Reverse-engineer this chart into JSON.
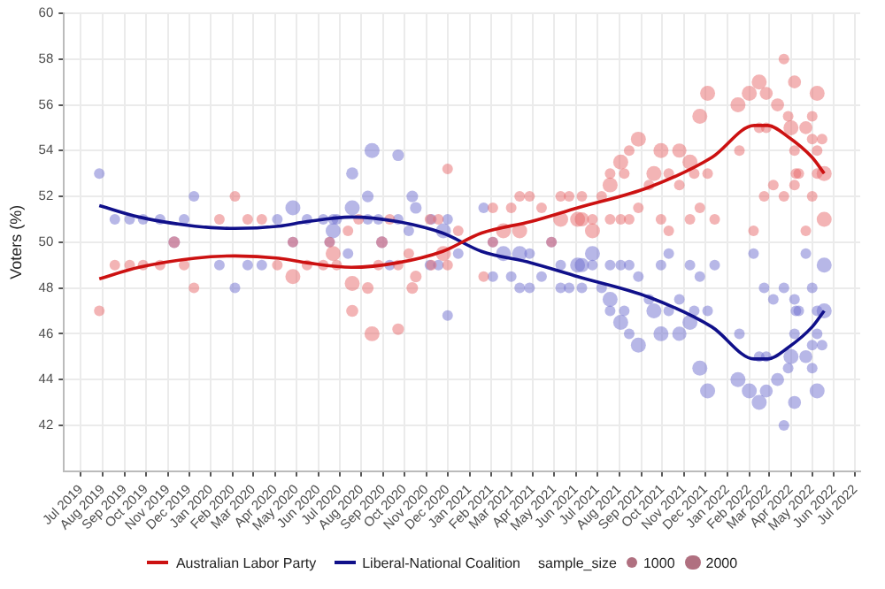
{
  "chart_data": {
    "type": "bubble",
    "ylabel": "Voters (%)",
    "legend": "bottom",
    "legend_title": "sample_size",
    "size_legend": [
      1000,
      2000
    ],
    "grid": true,
    "xlim": [
      "2019-06-07",
      "2022-07-08"
    ],
    "ylim": [
      40,
      60
    ],
    "yticks": [
      42,
      44,
      46,
      48,
      50,
      52,
      54,
      56,
      58,
      60
    ],
    "xticks": [
      {
        "value": "2019-07",
        "label": "Jul 2019"
      },
      {
        "value": "2019-08",
        "label": "Aug 2019"
      },
      {
        "value": "2019-09",
        "label": "Sep 2019"
      },
      {
        "value": "2019-10",
        "label": "Oct 2019"
      },
      {
        "value": "2019-11",
        "label": "Nov 2019"
      },
      {
        "value": "2019-12",
        "label": "Dec 2019"
      },
      {
        "value": "2020-01",
        "label": "Jan 2020"
      },
      {
        "value": "2020-02",
        "label": "Feb 2020"
      },
      {
        "value": "2020-03",
        "label": "Mar 2020"
      },
      {
        "value": "2020-04",
        "label": "Apr 2020"
      },
      {
        "value": "2020-05",
        "label": "May 2020"
      },
      {
        "value": "2020-06",
        "label": "Jun 2020"
      },
      {
        "value": "2020-07",
        "label": "Jul 2020"
      },
      {
        "value": "2020-08",
        "label": "Aug 2020"
      },
      {
        "value": "2020-09",
        "label": "Sep 2020"
      },
      {
        "value": "2020-10",
        "label": "Oct 2020"
      },
      {
        "value": "2020-11",
        "label": "Nov 2020"
      },
      {
        "value": "2020-12",
        "label": "Dec 2020"
      },
      {
        "value": "2021-01",
        "label": "Jan 2021"
      },
      {
        "value": "2021-02",
        "label": "Feb 2021"
      },
      {
        "value": "2021-03",
        "label": "Mar 2021"
      },
      {
        "value": "2021-04",
        "label": "Apr 2021"
      },
      {
        "value": "2021-05",
        "label": "May 2021"
      },
      {
        "value": "2021-06",
        "label": "Jun 2021"
      },
      {
        "value": "2021-07",
        "label": "Jul 2021"
      },
      {
        "value": "2021-08",
        "label": "Aug 2021"
      },
      {
        "value": "2021-09",
        "label": "Sep 2021"
      },
      {
        "value": "2021-10",
        "label": "Oct 2021"
      },
      {
        "value": "2021-11",
        "label": "Nov 2021"
      },
      {
        "value": "2021-12",
        "label": "Dec 2021"
      },
      {
        "value": "2022-01",
        "label": "Jan 2022"
      },
      {
        "value": "2022-02",
        "label": "Feb 2022"
      },
      {
        "value": "2022-03",
        "label": "Mar 2022"
      },
      {
        "value": "2022-04",
        "label": "Apr 2022"
      },
      {
        "value": "2022-05",
        "label": "May 2022"
      },
      {
        "value": "2022-06",
        "label": "Jun 2022"
      },
      {
        "value": "2022-07",
        "label": "Jul 2022"
      }
    ],
    "series": [
      {
        "type": "bubble",
        "color": "#e8696b",
        "x": [
          "2019-07-27",
          "2019-08-18",
          "2019-09-08",
          "2019-09-27",
          "2019-10-21",
          "2019-11-10",
          "2019-11-24",
          "2019-12-08",
          "2020-01-13",
          "2020-02-04",
          "2020-02-22",
          "2020-03-13",
          "2020-04-04",
          "2020-04-26",
          "2020-04-26",
          "2020-05-16",
          "2020-06-08",
          "2020-06-17",
          "2020-06-22",
          "2020-06-27",
          "2020-07-13",
          "2020-07-19",
          "2020-07-19",
          "2020-07-28",
          "2020-08-10",
          "2020-08-16",
          "2020-08-25",
          "2020-08-30",
          "2020-09-10",
          "2020-09-22",
          "2020-09-22",
          "2020-10-07",
          "2020-10-12",
          "2020-10-17",
          "2020-11-06",
          "2020-11-08",
          "2020-11-18",
          "2020-11-25",
          "2020-12-01",
          "2020-12-01",
          "2020-12-16",
          "2021-01-21",
          "2021-02-03",
          "2021-02-03",
          "2021-02-18",
          "2021-03-01",
          "2021-03-13",
          "2021-03-13",
          "2021-03-27",
          "2021-04-13",
          "2021-04-27",
          "2021-05-10",
          "2021-05-10",
          "2021-05-22",
          "2021-06-03",
          "2021-06-09",
          "2021-06-09",
          "2021-06-24",
          "2021-06-24",
          "2021-07-07",
          "2021-07-19",
          "2021-07-19",
          "2021-07-19",
          "2021-08-03",
          "2021-08-03",
          "2021-08-08",
          "2021-08-15",
          "2021-08-15",
          "2021-08-28",
          "2021-08-28",
          "2021-09-12",
          "2021-09-19",
          "2021-09-29",
          "2021-09-29",
          "2021-10-10",
          "2021-10-10",
          "2021-10-25",
          "2021-10-25",
          "2021-11-09",
          "2021-11-09",
          "2021-11-15",
          "2021-11-23",
          "2021-11-23",
          "2021-12-04",
          "2021-12-04",
          "2021-12-14",
          "2022-01-16",
          "2022-01-18",
          "2022-02-01",
          "2022-02-07",
          "2022-02-15",
          "2022-02-15",
          "2022-02-22",
          "2022-02-25",
          "2022-02-25",
          "2022-03-07",
          "2022-03-13",
          "2022-03-22",
          "2022-03-22",
          "2022-03-28",
          "2022-04-01",
          "2022-04-06",
          "2022-04-06",
          "2022-04-06",
          "2022-04-08",
          "2022-04-12",
          "2022-04-22",
          "2022-04-22",
          "2022-05-01",
          "2022-05-01",
          "2022-05-01",
          "2022-05-08",
          "2022-05-08",
          "2022-05-08",
          "2022-05-15",
          "2022-05-18",
          "2022-05-18"
        ],
        "values": [
          47,
          49,
          49,
          49,
          49,
          50,
          49,
          48,
          51,
          52,
          51,
          51,
          49,
          48.5,
          50,
          49,
          49,
          50,
          49.5,
          49,
          50.5,
          48.2,
          47,
          51,
          48,
          46,
          49,
          50,
          51,
          46.2,
          49,
          49.5,
          48,
          48.5,
          51,
          49,
          51,
          49.5,
          49,
          53.2,
          50.5,
          48.5,
          51.5,
          50,
          50.5,
          51.5,
          52,
          50.5,
          52,
          51.5,
          50,
          52,
          51,
          52,
          51,
          52,
          51,
          50.5,
          51,
          52,
          53,
          52.5,
          51,
          53.5,
          51,
          53,
          54,
          51,
          54.5,
          51.5,
          52.5,
          53,
          54,
          51,
          53,
          50.5,
          54,
          52.5,
          53.5,
          51,
          53,
          55.5,
          51.5,
          56.5,
          53,
          51,
          56,
          54,
          56.5,
          50.5,
          57,
          55,
          52,
          56.5,
          55,
          52.5,
          56,
          58,
          52,
          55.5,
          55,
          54,
          52.5,
          57,
          53,
          53,
          55,
          50.5,
          55.5,
          54.5,
          52,
          56.5,
          54,
          53,
          54.5,
          53,
          51
        ],
        "sizes": [
          1000,
          1000,
          1000,
          1000,
          1000,
          1200,
          1000,
          1000,
          1000,
          1000,
          1000,
          1000,
          1000,
          2000,
          1000,
          1000,
          1000,
          1000,
          2000,
          1000,
          1000,
          2000,
          1300,
          1000,
          1200,
          2000,
          1000,
          1200,
          1000,
          1200,
          1000,
          1000,
          1200,
          1200,
          1000,
          1000,
          1000,
          2000,
          1000,
          1000,
          1000,
          1000,
          1000,
          1000,
          2000,
          1000,
          1000,
          2000,
          1000,
          1000,
          1000,
          1000,
          2000,
          1000,
          2000,
          1000,
          1800,
          2000,
          1000,
          1000,
          1000,
          2000,
          1000,
          2000,
          1000,
          1000,
          1000,
          1000,
          2000,
          1000,
          1000,
          2000,
          2000,
          1000,
          1000,
          1000,
          1800,
          1000,
          2000,
          1000,
          1000,
          2000,
          1000,
          2000,
          1000,
          1000,
          2000,
          1000,
          2000,
          1000,
          2000,
          1000,
          1000,
          1500,
          1000,
          1000,
          1500,
          1000,
          1000,
          1000,
          2000,
          1000,
          1000,
          1500,
          1000,
          1000,
          1500,
          1000,
          1000,
          1000,
          1000,
          2000,
          1000,
          1000,
          1000,
          2000,
          2000
        ]
      },
      {
        "type": "bubble",
        "color": "#6f6fd0",
        "x": [
          "2019-07-27",
          "2019-08-18",
          "2019-09-08",
          "2019-09-27",
          "2019-10-21",
          "2019-11-10",
          "2019-11-24",
          "2019-12-08",
          "2020-01-13",
          "2020-02-04",
          "2020-02-22",
          "2020-03-13",
          "2020-04-04",
          "2020-04-26",
          "2020-04-26",
          "2020-05-16",
          "2020-06-08",
          "2020-06-17",
          "2020-06-22",
          "2020-06-22",
          "2020-06-27",
          "2020-07-13",
          "2020-07-19",
          "2020-07-19",
          "2020-08-10",
          "2020-08-10",
          "2020-08-16",
          "2020-08-25",
          "2020-08-30",
          "2020-09-10",
          "2020-09-22",
          "2020-09-22",
          "2020-10-07",
          "2020-10-12",
          "2020-10-17",
          "2020-11-06",
          "2020-11-08",
          "2020-11-18",
          "2020-11-25",
          "2020-12-01",
          "2020-12-01",
          "2020-12-16",
          "2021-01-21",
          "2021-02-03",
          "2021-02-03",
          "2021-02-18",
          "2021-03-01",
          "2021-03-13",
          "2021-03-13",
          "2021-03-27",
          "2021-03-27",
          "2021-04-13",
          "2021-04-27",
          "2021-05-10",
          "2021-05-10",
          "2021-05-22",
          "2021-06-03",
          "2021-06-09",
          "2021-06-09",
          "2021-06-24",
          "2021-06-24",
          "2021-07-07",
          "2021-07-19",
          "2021-07-19",
          "2021-07-19",
          "2021-08-03",
          "2021-08-03",
          "2021-08-08",
          "2021-08-15",
          "2021-08-15",
          "2021-08-28",
          "2021-08-28",
          "2021-09-12",
          "2021-09-19",
          "2021-09-29",
          "2021-09-29",
          "2021-10-10",
          "2021-10-10",
          "2021-10-25",
          "2021-10-25",
          "2021-11-09",
          "2021-11-09",
          "2021-11-15",
          "2021-11-23",
          "2021-11-23",
          "2021-12-04",
          "2021-12-04",
          "2021-12-14",
          "2022-01-16",
          "2022-01-18",
          "2022-02-01",
          "2022-02-07",
          "2022-02-15",
          "2022-02-15",
          "2022-02-22",
          "2022-02-25",
          "2022-02-25",
          "2022-03-07",
          "2022-03-13",
          "2022-03-22",
          "2022-03-22",
          "2022-03-28",
          "2022-04-01",
          "2022-04-06",
          "2022-04-06",
          "2022-04-06",
          "2022-04-08",
          "2022-04-12",
          "2022-04-22",
          "2022-04-22",
          "2022-05-01",
          "2022-05-01",
          "2022-05-01",
          "2022-05-08",
          "2022-05-08",
          "2022-05-08",
          "2022-05-15",
          "2022-05-18",
          "2022-05-18"
        ],
        "values": [
          53,
          51,
          51,
          51,
          51,
          50,
          51,
          52,
          49,
          48,
          49,
          49,
          51,
          51.5,
          50,
          51,
          51,
          50,
          51,
          50.5,
          51,
          49.5,
          53,
          51.5,
          52,
          51,
          54,
          51,
          50,
          49,
          53.8,
          51,
          50.5,
          52,
          51.5,
          49,
          51,
          49,
          50.5,
          51,
          46.8,
          49.5,
          51.5,
          48.5,
          50,
          49.5,
          48.5,
          48,
          49.5,
          48,
          49.5,
          48.5,
          50,
          48,
          49,
          48,
          49,
          48,
          49,
          49.5,
          49,
          48,
          47,
          47.5,
          49,
          46.5,
          49,
          47,
          46,
          49,
          45.5,
          48.5,
          47.5,
          47,
          46,
          49,
          47,
          49.5,
          46,
          47.5,
          46.5,
          49,
          47,
          44.5,
          48.5,
          43.5,
          47,
          49,
          44,
          46,
          43.5,
          49.5,
          43,
          45,
          48,
          43.5,
          45,
          47.5,
          44,
          42,
          48,
          44.5,
          45,
          46,
          47.5,
          43,
          47,
          47,
          45,
          49.5,
          44.5,
          45.5,
          48,
          43.5,
          46,
          47,
          45.5,
          47,
          49
        ],
        "sizes": [
          1000,
          1000,
          1000,
          1000,
          1000,
          1200,
          1000,
          1000,
          1000,
          1000,
          1000,
          1000,
          1000,
          2000,
          1000,
          1000,
          1000,
          1000,
          1000,
          2000,
          1000,
          1000,
          1300,
          2000,
          1200,
          1000,
          2000,
          1000,
          1200,
          1000,
          1200,
          1000,
          1000,
          1200,
          1200,
          1000,
          1000,
          1000,
          2000,
          1000,
          1000,
          1000,
          1000,
          1000,
          1000,
          2000,
          1000,
          1000,
          2000,
          1000,
          1000,
          1000,
          1000,
          1000,
          1000,
          1000,
          2000,
          1000,
          1800,
          2000,
          1000,
          1000,
          1000,
          2000,
          1000,
          2000,
          1000,
          1000,
          1000,
          1000,
          2000,
          1000,
          1000,
          2000,
          2000,
          1000,
          1000,
          1000,
          1800,
          1000,
          2000,
          1000,
          1000,
          2000,
          1000,
          2000,
          1000,
          1000,
          2000,
          1000,
          2000,
          1000,
          2000,
          1000,
          1000,
          1500,
          1000,
          1000,
          1500,
          1000,
          1000,
          1000,
          2000,
          1000,
          1000,
          1500,
          1000,
          1000,
          1500,
          1000,
          1000,
          1000,
          1000,
          2000,
          1000,
          1000,
          1000,
          2000,
          2000
        ]
      },
      {
        "type": "line",
        "name": "Australian Labor Party",
        "color": "#cc1111",
        "x": [
          "2019-07-27",
          "2019-09-21",
          "2019-12-09",
          "2020-02-04",
          "2020-04-06",
          "2020-05-16",
          "2020-07-18",
          "2020-09-21",
          "2020-11-24",
          "2021-01-18",
          "2021-03-29",
          "2021-06-03",
          "2021-09-12",
          "2021-12-10",
          "2022-02-08",
          "2022-02-27",
          "2022-03-28",
          "2022-05-01",
          "2022-05-18"
        ],
        "values": [
          48.4,
          48.9,
          49.3,
          49.4,
          49.3,
          49.1,
          48.9,
          49.1,
          49.6,
          50.4,
          50.9,
          51.5,
          52.4,
          53.7,
          55.1,
          55.1,
          54.6,
          53.7,
          53
        ]
      },
      {
        "type": "line",
        "name": "Liberal-National Coalition",
        "color": "#10108a",
        "x": [
          "2019-07-27",
          "2019-09-21",
          "2019-12-09",
          "2020-02-04",
          "2020-04-06",
          "2020-05-16",
          "2020-07-18",
          "2020-09-21",
          "2020-11-24",
          "2021-01-18",
          "2021-03-29",
          "2021-06-03",
          "2021-09-12",
          "2021-12-10",
          "2022-02-08",
          "2022-02-27",
          "2022-03-28",
          "2022-05-01",
          "2022-05-18"
        ],
        "values": [
          51.6,
          51.1,
          50.7,
          50.6,
          50.7,
          50.9,
          51.1,
          50.9,
          50.4,
          49.6,
          49.1,
          48.5,
          47.6,
          46.3,
          44.9,
          44.9,
          45.4,
          46.3,
          47
        ]
      }
    ]
  }
}
